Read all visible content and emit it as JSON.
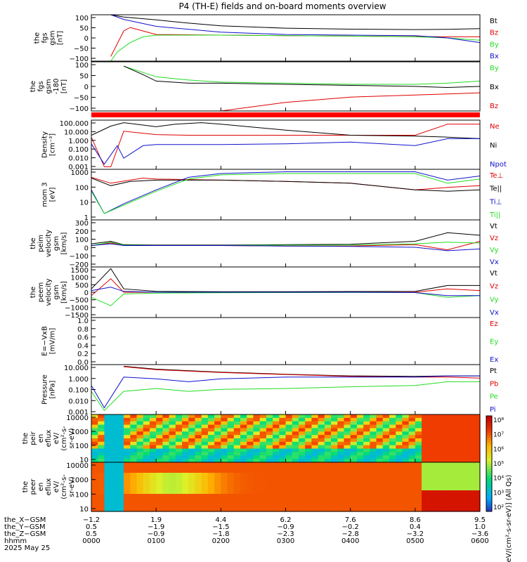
{
  "title": "P4 (TH-E) fields and on-board moments overview",
  "colors": {
    "black": "#000000",
    "red": "#e00000",
    "green": "#22dd22",
    "blue": "#1111cc",
    "dblue": "#0000cc"
  },
  "chart_data": [
    {
      "type": "line",
      "name": "fgs",
      "ylabel": [
        "the",
        "fgs",
        "gsm",
        "[nT]"
      ],
      "yticks": [
        "100",
        "50",
        "0",
        "−50",
        "−100"
      ],
      "ylim": [
        -100,
        100
      ],
      "legend": [
        {
          "label": "Bt",
          "color": "black"
        },
        {
          "label": "Bz",
          "color": "red"
        },
        {
          "label": "By",
          "color": "green"
        },
        {
          "label": "Bx",
          "color": "blue"
        }
      ],
      "series": [
        {
          "name": "Bt",
          "color": "black",
          "x": [
            0.3,
            0.5,
            1,
            1.5,
            2,
            3,
            4,
            5,
            5.5,
            6
          ],
          "y": [
            100,
            90,
            78,
            64,
            52,
            42,
            38,
            36,
            37,
            40
          ]
        },
        {
          "name": "Bz",
          "color": "red",
          "x": [
            0.3,
            0.5,
            0.6,
            0.8,
            1,
            2,
            3,
            4,
            5,
            5.5,
            6
          ],
          "y": [
            -80,
            30,
            45,
            30,
            15,
            12,
            10,
            8,
            6,
            5,
            5
          ]
        },
        {
          "name": "By",
          "color": "green",
          "x": [
            0.3,
            0.4,
            0.6,
            0.8,
            1,
            2,
            3,
            4,
            5,
            5.5,
            6
          ],
          "y": [
            -100,
            -60,
            -20,
            5,
            12,
            12,
            10,
            8,
            5,
            0,
            -10
          ]
        },
        {
          "name": "Bx",
          "color": "blue",
          "x": [
            0.3,
            0.5,
            1,
            2,
            3,
            4,
            5,
            5.5,
            6
          ],
          "y": [
            100,
            80,
            50,
            25,
            15,
            12,
            10,
            0,
            -20
          ]
        }
      ]
    },
    {
      "type": "line",
      "name": "fgs_rot",
      "ylabel": [
        "the",
        "fgs",
        "gsm",
        "-180",
        "[nT]"
      ],
      "yticks": [
        "100",
        "50",
        "0",
        "−50",
        "−100"
      ],
      "ylim": [
        -130,
        100
      ],
      "legend": [
        {
          "label": "By",
          "color": "green"
        },
        {
          "label": "Bx",
          "color": "black"
        },
        {
          "label": "Bz",
          "color": "red"
        }
      ],
      "series": [
        {
          "name": "By",
          "color": "green",
          "x": [
            0.5,
            0.8,
            1,
            1.5,
            2,
            3,
            4,
            5,
            5.5,
            6
          ],
          "y": [
            80,
            50,
            30,
            15,
            5,
            0,
            -5,
            -5,
            0,
            10
          ]
        },
        {
          "name": "Bx",
          "color": "black",
          "x": [
            0.5,
            0.8,
            1,
            1.5,
            2,
            3,
            4,
            5,
            5.5,
            6
          ],
          "y": [
            80,
            40,
            10,
            0,
            0,
            -5,
            -10,
            -15,
            -20,
            -15
          ]
        },
        {
          "name": "Bz",
          "color": "red",
          "x": [
            2,
            2.5,
            3,
            4,
            5,
            5.5,
            6
          ],
          "y": [
            -130,
            -110,
            -90,
            -65,
            -55,
            -50,
            -45
          ]
        }
      ]
    },
    {
      "type": "line",
      "name": "density",
      "scale": "log",
      "ylabel": [
        "Density",
        "[cm⁻³]"
      ],
      "yticks": [
        "100.000",
        "10.000",
        "1.000",
        "0.100",
        "0.010",
        "0.001"
      ],
      "ylim": [
        0.0005,
        300
      ],
      "legend": [
        {
          "label": "Ne",
          "color": "red"
        },
        {
          "label": "Ni",
          "color": "black"
        },
        {
          "label": "Npot",
          "color": "blue"
        }
      ],
      "series": [
        {
          "name": "Ne",
          "color": "red",
          "x": [
            0,
            0.2,
            0.3,
            0.5,
            1,
            1.5,
            2,
            3,
            4,
            5,
            5.5,
            6
          ],
          "y": [
            3,
            0.001,
            0.001,
            15,
            6,
            5,
            5,
            5,
            5,
            5,
            100,
            100
          ]
        },
        {
          "name": "Ni",
          "color": "black",
          "x": [
            0,
            0.3,
            0.5,
            1,
            1.3,
            1.7,
            2,
            3,
            4,
            5,
            5.5,
            6
          ],
          "y": [
            5,
            60,
            150,
            50,
            100,
            150,
            100,
            20,
            5,
            4,
            3,
            2
          ]
        },
        {
          "name": "Npot",
          "color": "blue",
          "x": [
            0,
            0.2,
            0.4,
            0.5,
            0.8,
            1,
            2,
            3,
            4,
            5,
            5.5,
            6
          ],
          "y": [
            0.5,
            0.002,
            0.3,
            0.01,
            0.3,
            0.4,
            0.4,
            0.5,
            0.8,
            0.3,
            2,
            2
          ]
        }
      ]
    },
    {
      "type": "line",
      "name": "temperature",
      "scale": "log",
      "ylabel": [
        "mom 3",
        "[eV]"
      ],
      "yticks": [
        "1000",
        "100",
        "10",
        "1"
      ],
      "ylim": [
        0.7,
        3000
      ],
      "legend": [
        {
          "label": "Te⊥",
          "color": "red"
        },
        {
          "label": "Te||",
          "color": "black"
        },
        {
          "label": "Ti⊥",
          "color": "blue"
        },
        {
          "label": "Ti||",
          "color": "green"
        }
      ],
      "series": [
        {
          "name": "Te⊥",
          "color": "red",
          "x": [
            0,
            0.3,
            0.6,
            0.8,
            1,
            2,
            3,
            4,
            5,
            5.5,
            6
          ],
          "y": [
            800,
            300,
            500,
            700,
            600,
            500,
            400,
            300,
            100,
            150,
            200
          ]
        },
        {
          "name": "Te||",
          "color": "black",
          "x": [
            0,
            0.3,
            0.6,
            1,
            2,
            3,
            4,
            5,
            5.5,
            6
          ],
          "y": [
            700,
            200,
            400,
            500,
            500,
            400,
            300,
            100,
            80,
            100
          ]
        },
        {
          "name": "Ti⊥",
          "color": "blue",
          "x": [
            0,
            0.2,
            0.5,
            1,
            1.5,
            2,
            3,
            4,
            5,
            5.5,
            6
          ],
          "y": [
            100,
            2,
            10,
            100,
            800,
            1500,
            2000,
            2000,
            2000,
            500,
            1000
          ]
        },
        {
          "name": "Ti||",
          "color": "green",
          "x": [
            0,
            0.2,
            0.5,
            1,
            1.5,
            2,
            3,
            4,
            5,
            5.5,
            6
          ],
          "y": [
            80,
            2,
            8,
            80,
            600,
            1200,
            1500,
            1500,
            1500,
            300,
            600
          ]
        }
      ]
    },
    {
      "type": "line",
      "name": "ion_velocity",
      "ylabel": [
        "the",
        "peim",
        "velocity",
        "gsm",
        "[km/s]"
      ],
      "yticks": [
        "300",
        "200",
        "100",
        "0",
        "−100",
        "−200"
      ],
      "ylim": [
        -250,
        300
      ],
      "legend": [
        {
          "label": "Vt",
          "color": "black"
        },
        {
          "label": "Vz",
          "color": "red"
        },
        {
          "label": "Vy",
          "color": "green"
        },
        {
          "label": "Vx",
          "color": "blue"
        }
      ],
      "series": [
        {
          "name": "Vt",
          "color": "black",
          "x": [
            0,
            0.3,
            0.5,
            1,
            2,
            3,
            4,
            5,
            5.5,
            6
          ],
          "y": [
            20,
            50,
            10,
            5,
            5,
            10,
            15,
            50,
            150,
            120
          ]
        },
        {
          "name": "Vz",
          "color": "red",
          "x": [
            0,
            0.3,
            0.5,
            1,
            2,
            3,
            4,
            5,
            5.5,
            6
          ],
          "y": [
            0,
            30,
            0,
            0,
            0,
            -5,
            -5,
            10,
            -50,
            50
          ]
        },
        {
          "name": "Vy",
          "color": "green",
          "x": [
            0,
            0.3,
            0.5,
            1,
            2,
            3,
            4,
            5,
            5.5,
            6
          ],
          "y": [
            0,
            40,
            5,
            0,
            0,
            5,
            5,
            20,
            40,
            30
          ]
        },
        {
          "name": "Vx",
          "color": "blue",
          "x": [
            0,
            0.3,
            0.5,
            1,
            2,
            3,
            4,
            5,
            5.5,
            6
          ],
          "y": [
            0,
            20,
            0,
            0,
            0,
            -5,
            -10,
            -20,
            -60,
            -40
          ]
        }
      ]
    },
    {
      "type": "line",
      "name": "electron_velocity",
      "ylabel": [
        "the",
        "peem",
        "velocity",
        "gsm",
        "[km/s]"
      ],
      "yticks": [
        "1500",
        "1000",
        "500",
        "0",
        "−500",
        "−1000",
        "−1500"
      ],
      "ylim": [
        -1500,
        1500
      ],
      "legend": [
        {
          "label": "Vt",
          "color": "black"
        },
        {
          "label": "Vz",
          "color": "red"
        },
        {
          "label": "Vy",
          "color": "green"
        },
        {
          "label": "Vx",
          "color": "blue"
        }
      ],
      "series": [
        {
          "name": "Vt",
          "color": "black",
          "x": [
            0,
            0.3,
            0.5,
            1,
            2,
            3,
            4,
            5,
            5.5,
            6
          ],
          "y": [
            200,
            1400,
            200,
            50,
            30,
            30,
            40,
            50,
            400,
            400
          ]
        },
        {
          "name": "Vz",
          "color": "red",
          "x": [
            0,
            0.3,
            0.5,
            1,
            2,
            3,
            4,
            5,
            5.5,
            6
          ],
          "y": [
            -200,
            800,
            0,
            0,
            0,
            0,
            0,
            0,
            200,
            100
          ]
        },
        {
          "name": "Vy",
          "color": "green",
          "x": [
            0,
            0.3,
            0.5,
            1,
            2,
            3,
            4,
            5,
            5.5,
            6
          ],
          "y": [
            -300,
            -800,
            -100,
            -50,
            -30,
            -20,
            -10,
            -20,
            -300,
            -200
          ]
        },
        {
          "name": "Vx",
          "color": "blue",
          "x": [
            0,
            0.3,
            0.5,
            1,
            2,
            3,
            4,
            5,
            5.5,
            6
          ],
          "y": [
            100,
            300,
            50,
            0,
            0,
            0,
            0,
            -20,
            -200,
            -200
          ]
        }
      ]
    },
    {
      "type": "line",
      "name": "efield",
      "ylabel": [
        "E=−VxB",
        "[mV/m]"
      ],
      "yticks": [
        "1.0",
        "0.8",
        "0.6",
        "0.4",
        "0.2",
        "0.0"
      ],
      "ylim": [
        0,
        1
      ],
      "legend": [
        {
          "label": "Ez",
          "color": "red"
        },
        {
          "label": "Ey",
          "color": "green"
        },
        {
          "label": "Ex",
          "color": "blue"
        }
      ],
      "series": []
    },
    {
      "type": "line",
      "name": "pressure",
      "scale": "log",
      "ylabel": [
        "Pressure",
        "[nPa]"
      ],
      "yticks": [
        "10.000",
        "1.000",
        "0.100",
        "0.010",
        "0.001"
      ],
      "ylim": [
        0.0002,
        30
      ],
      "legend": [
        {
          "label": "Pt",
          "color": "black"
        },
        {
          "label": "Pb",
          "color": "red"
        },
        {
          "label": "Pe",
          "color": "green"
        },
        {
          "label": "Pi",
          "color": "blue"
        }
      ],
      "series": [
        {
          "name": "Pt",
          "color": "black",
          "x": [
            0.5,
            1,
            2,
            3,
            4,
            5,
            5.5,
            6
          ],
          "y": [
            20,
            10,
            5,
            3,
            2,
            1.8,
            2,
            2
          ]
        },
        {
          "name": "Pb",
          "color": "red",
          "x": [
            0.5,
            1,
            2,
            3,
            4,
            5,
            5.5,
            6
          ],
          "y": [
            18,
            9,
            4.5,
            2.8,
            1.8,
            1.5,
            1.5,
            1.2
          ]
        },
        {
          "name": "Pe",
          "color": "green",
          "x": [
            0,
            0.2,
            0.5,
            1,
            1.5,
            2,
            3,
            4,
            5,
            5.5,
            6
          ],
          "y": [
            0.05,
            0.0005,
            0.05,
            0.1,
            0.05,
            0.08,
            0.1,
            0.15,
            0.2,
            0.5,
            0.5
          ]
        },
        {
          "name": "Pi",
          "color": "blue",
          "x": [
            0,
            0.2,
            0.5,
            1,
            1.5,
            2,
            3,
            4,
            5,
            5.5,
            6
          ],
          "y": [
            0.2,
            0.001,
            1.5,
            1,
            0.5,
            1,
            1.5,
            1.5,
            1.5,
            2,
            2
          ]
        }
      ]
    },
    {
      "type": "heatmap",
      "name": "ion_energy_flux",
      "ylabel": [
        "the",
        "peir",
        "en",
        "eflux",
        "eV/",
        "(cm²-s-",
        "sr-eV)"
      ],
      "yticks": [
        "10000",
        "1000",
        "100",
        "10"
      ],
      "ylim": [
        5,
        25000
      ]
    },
    {
      "type": "heatmap",
      "name": "electron_energy_flux",
      "ylabel": [
        "the",
        "peer",
        "en",
        "eflux",
        "eV/",
        "(cm²-s-",
        "sr-eV)"
      ],
      "yticks": [
        "10000",
        "1000",
        "100",
        "10"
      ],
      "ylim": [
        5,
        25000
      ]
    }
  ],
  "colorbar": {
    "ticks": [
      "10⁸",
      "10⁷",
      "10⁶",
      "10⁵",
      "10⁴",
      "10³",
      "10²"
    ],
    "label": "[eV/(cm²-s-sr-eV)] (All Qs)"
  },
  "xaxis": {
    "row_labels": [
      "the_X−GSM",
      "the_Y−GSM",
      "the_Z−GSM",
      "hhmm",
      "2025 May 25"
    ],
    "columns": [
      {
        "t": 0,
        "x": "−1.2",
        "y": "0.5",
        "z": "0.5",
        "hhmm": "0000"
      },
      {
        "t": 1,
        "x": "1.9",
        "y": "−1.9",
        "z": "−0.9",
        "hhmm": "0100"
      },
      {
        "t": 2,
        "x": "4.4",
        "y": "−1.5",
        "z": "−1.8",
        "hhmm": "0200"
      },
      {
        "t": 3,
        "x": "6.2",
        "y": "−0.9",
        "z": "−2.3",
        "hhmm": "0300"
      },
      {
        "t": 4,
        "x": "7.6",
        "y": "−0.2",
        "z": "−2.8",
        "hhmm": "0400"
      },
      {
        "t": 5,
        "x": "8.6",
        "y": "0.4",
        "z": "−3.2",
        "hhmm": "0500"
      },
      {
        "t": 6,
        "x": "9.5",
        "y": "1.0",
        "z": "−3.6",
        "hhmm": "0600"
      }
    ]
  }
}
